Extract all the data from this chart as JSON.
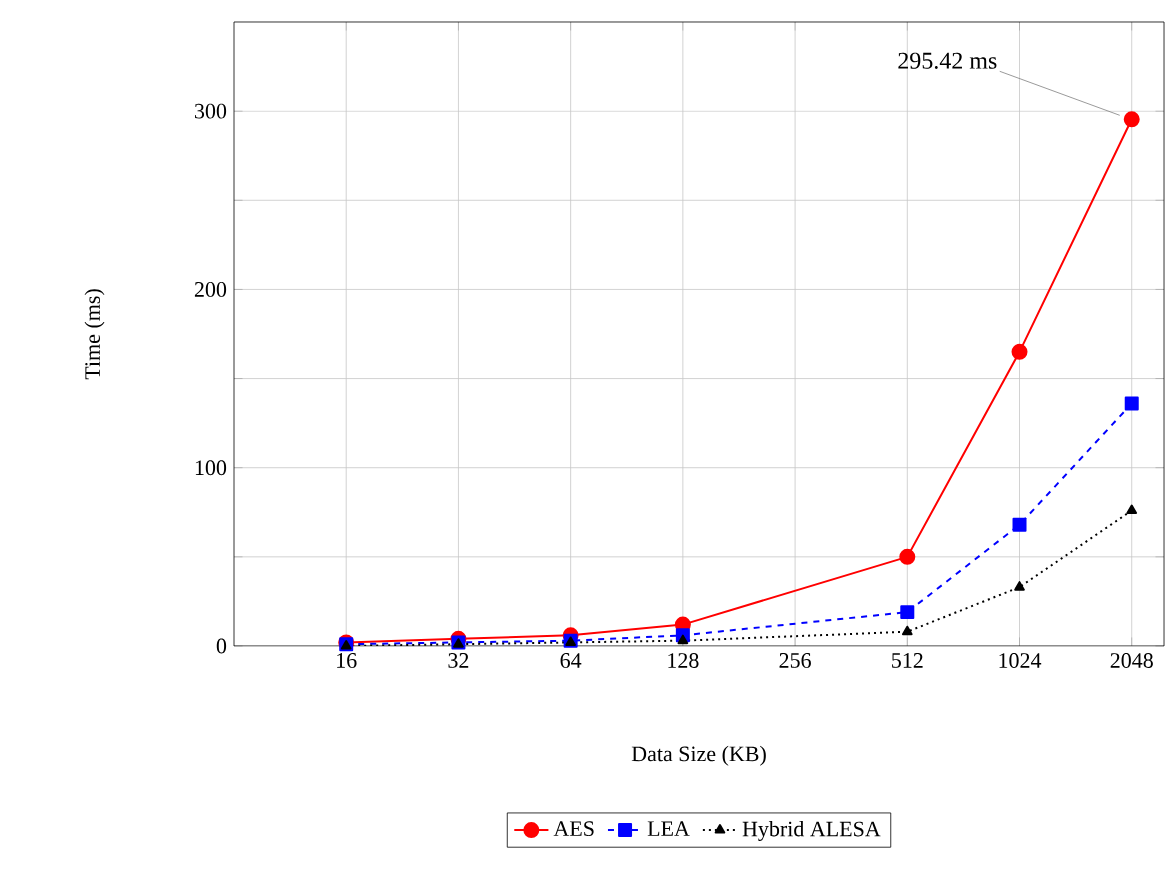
{
  "chart_data": {
    "type": "line",
    "xlabel": "Data Size (KB)",
    "ylabel": "Time (ms)",
    "x": [
      16,
      32,
      64,
      128,
      512,
      1024,
      2048
    ],
    "log": "x",
    "xlim": [
      8,
      2500
    ],
    "xticks": [
      16,
      32,
      64,
      128,
      256,
      512,
      1024,
      2048
    ],
    "ylim": [
      0,
      350
    ],
    "yticks": [
      0,
      {
        "value": 50,
        "label": null
      },
      100,
      {
        "value": 150,
        "label": null
      },
      200,
      {
        "value": 250,
        "label": null
      },
      300
    ],
    "grid": true,
    "legend": "bottom",
    "series": [
      {
        "name": "AES",
        "color": "#ff0000",
        "marker": "circle",
        "line_style": "solid",
        "values": [
          2,
          4,
          6,
          12,
          50,
          165,
          295.42
        ]
      },
      {
        "name": "LEA",
        "color": "#0000ff",
        "marker": "square",
        "line_style": "dashed",
        "values": [
          1,
          2,
          3,
          6,
          19,
          68,
          136
        ]
      },
      {
        "name": "Hybrid ALESA",
        "color": "#000000",
        "marker": "triangle",
        "line_style": "dotted",
        "values": [
          0,
          1,
          2,
          3,
          8,
          33,
          76
        ]
      }
    ],
    "annotations": [
      {
        "text": "295.42 ms",
        "x": 2048,
        "y": 295.42
      }
    ]
  }
}
